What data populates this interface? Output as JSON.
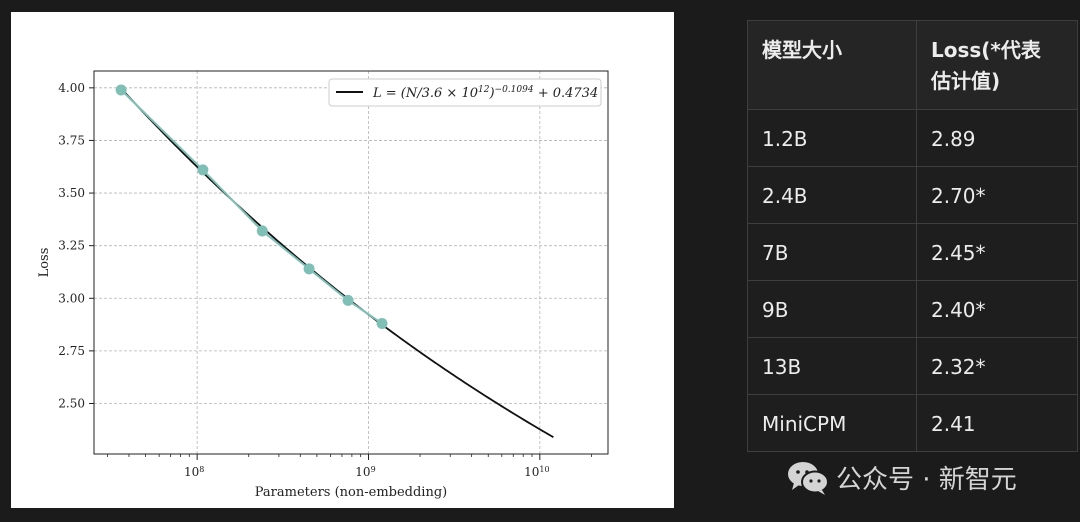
{
  "chart_data": {
    "type": "line",
    "title": "",
    "xlabel": "Parameters (non-embedding)",
    "ylabel": "Loss",
    "x_scale": "log",
    "xlim": [
      25000000.0,
      25000000000.0
    ],
    "ylim": [
      2.26,
      4.08
    ],
    "grid": true,
    "legend_position": "top-right",
    "y_ticks": [
      "2.50",
      "2.75",
      "3.00",
      "3.25",
      "3.50",
      "3.75",
      "4.00"
    ],
    "y_tick_values": [
      2.5,
      2.75,
      3.0,
      3.25,
      3.5,
      3.75,
      4.0
    ],
    "x_ticks": [
      {
        "value": 100000000.0,
        "base": "10",
        "exp": "8"
      },
      {
        "value": 1000000000.0,
        "base": "10",
        "exp": "9"
      },
      {
        "value": 10000000000.0,
        "base": "10",
        "exp": "10"
      }
    ],
    "series": [
      {
        "kind": "fit",
        "legend": "L = (N/3.6 × 10",
        "legend_exp1": "12",
        "legend_mid": ")",
        "legend_exp2": "−0.1094",
        "legend_tail": " + 0.4734",
        "formula": {
          "N0": 3600000000000.0,
          "alpha": -0.1094,
          "c": 0.4734
        },
        "x_range": [
          36000000.0,
          12000000000.0
        ],
        "color": "#111111"
      },
      {
        "kind": "observed",
        "x": [
          36000000.0,
          108000000.0,
          240000000.0,
          450000000.0,
          760000000.0,
          1200000000.0
        ],
        "y": [
          3.99,
          3.61,
          3.32,
          3.14,
          2.99,
          2.88
        ],
        "color": "#7fbfb6"
      }
    ]
  },
  "table": {
    "headers": [
      "模型大小",
      "Loss(*代表\n估计值)"
    ],
    "rows": [
      [
        "1.2B",
        "2.89"
      ],
      [
        "2.4B",
        "2.70*"
      ],
      [
        "7B",
        "2.45*"
      ],
      [
        "9B",
        "2.40*"
      ],
      [
        "13B",
        "2.32*"
      ],
      [
        "MiniCPM",
        "2.41"
      ]
    ]
  },
  "watermark": {
    "text": "公众号 · 新智元",
    "icon": "wechat-icon"
  },
  "colors": {
    "background": "#1b1b1b",
    "fit_line": "#111111",
    "observed": "#7fbfb6"
  }
}
